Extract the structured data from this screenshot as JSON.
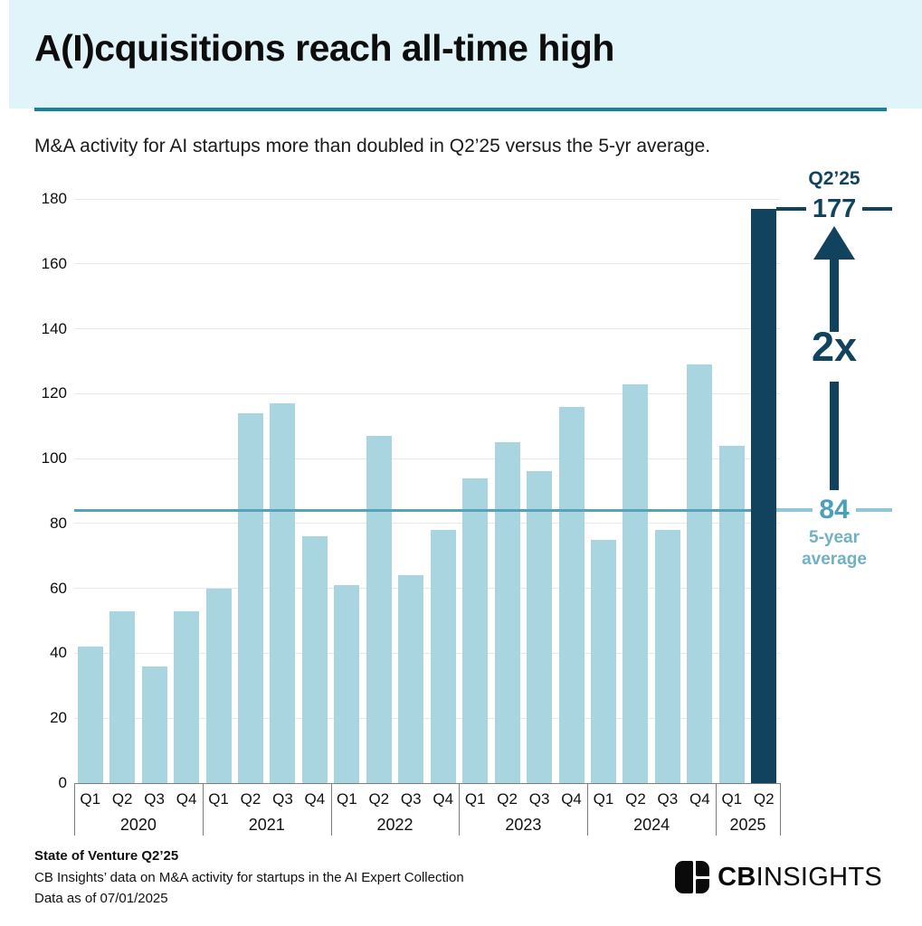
{
  "header": {
    "title": "A(I)cquisitions reach all-time high"
  },
  "subtitle": "M&A activity for AI startups more than doubled in Q2’25 versus the 5-yr average.",
  "chart_data": {
    "type": "bar",
    "title": "A(I)cquisitions reach all-time high",
    "xlabel": "",
    "ylabel": "",
    "ylim": [
      0,
      180
    ],
    "yticks": [
      0,
      20,
      40,
      60,
      80,
      100,
      120,
      140,
      160,
      180
    ],
    "grid": true,
    "legend": false,
    "groups": [
      {
        "year": "2020",
        "quarters": [
          "Q1",
          "Q2",
          "Q3",
          "Q4"
        ],
        "values": [
          42,
          53,
          36,
          53
        ]
      },
      {
        "year": "2021",
        "quarters": [
          "Q1",
          "Q2",
          "Q3",
          "Q4"
        ],
        "values": [
          60,
          114,
          117,
          76
        ]
      },
      {
        "year": "2022",
        "quarters": [
          "Q1",
          "Q2",
          "Q3",
          "Q4"
        ],
        "values": [
          61,
          107,
          64,
          78
        ]
      },
      {
        "year": "2023",
        "quarters": [
          "Q1",
          "Q2",
          "Q3",
          "Q4"
        ],
        "values": [
          94,
          105,
          96,
          116
        ]
      },
      {
        "year": "2024",
        "quarters": [
          "Q1",
          "Q2",
          "Q3",
          "Q4"
        ],
        "values": [
          75,
          123,
          78,
          129
        ]
      },
      {
        "year": "2025",
        "quarters": [
          "Q1",
          "Q2"
        ],
        "values": [
          104,
          177
        ]
      }
    ],
    "highlight": {
      "year": "2025",
      "quarter": "Q2",
      "label": "Q2’25",
      "value": 177,
      "value_label": "177",
      "multiplier_label": "2x"
    },
    "average_line": {
      "value": 84,
      "label": "84",
      "sublabel": "5-year average"
    }
  },
  "colors": {
    "header_bg": "#e1f4f9",
    "underline": "#15829e",
    "bar_light": "#a9d5e0",
    "bar_dark": "#11435f",
    "average_line": "#54a3b9",
    "average_text": "#4aa0bb",
    "annotation_navy": "#11435f"
  },
  "footer": {
    "source_title": "State of Venture Q2’25",
    "source_line2": "CB Insights’ data on M&A activity for startups in the AI Expert Collection",
    "source_line3": "Data as of 07/01/2025",
    "logo_bold": "CB",
    "logo_light": "INSIGHTS"
  }
}
